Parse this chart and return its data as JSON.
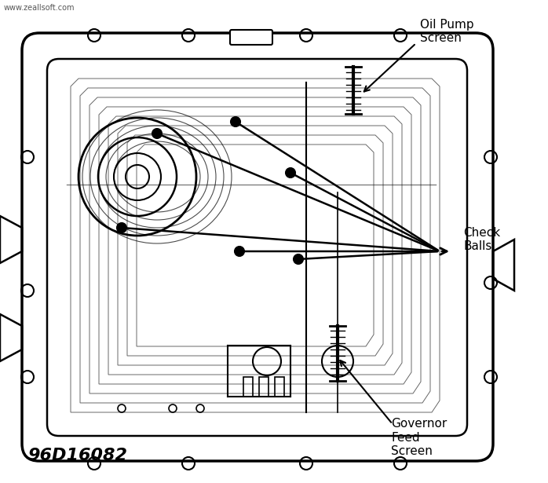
{
  "bg_color": "#ffffff",
  "line_color": "#000000",
  "watermark": "www.zeallsoft.com",
  "part_number": "96D16082",
  "labels": {
    "oil_pump_screen": "Oil Pump\nScreen",
    "check_balls": "Check\nBalls",
    "governor_feed_screen": "Governor\nFeed\nScreen"
  },
  "fig_width": 6.98,
  "fig_height": 6.15,
  "dpi": 100
}
